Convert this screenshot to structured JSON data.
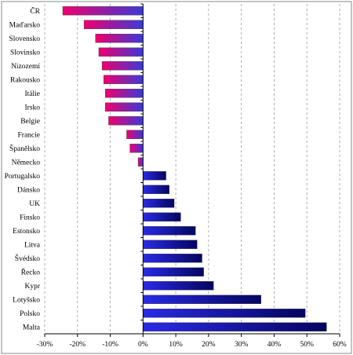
{
  "chart_data": {
    "type": "bar",
    "orientation": "horizontal",
    "title": "",
    "xlabel": "",
    "ylabel": "",
    "xlim": [
      -30,
      60
    ],
    "x_ticks": [
      -30,
      -20,
      -10,
      0,
      10,
      20,
      30,
      40,
      50,
      60
    ],
    "x_tick_labels": [
      "-30%",
      "-20%",
      "-10%",
      "0%",
      "10%",
      "20%",
      "30%",
      "40%",
      "50%",
      "60%"
    ],
    "unit": "%",
    "grid": "vertical dashed",
    "legend": "none",
    "categories": [
      "ČR",
      "Maďarsko",
      "Slovensko",
      "Slovinsko",
      "Nizozemí",
      "Rakousko",
      "Itálie",
      "Irsko",
      "Belgie",
      "Francie",
      "Španělsko",
      "Německo",
      "Portugalsko",
      "Dánsko",
      "UK",
      "Finsko",
      "Estonsko",
      "Litva",
      "Švédsko",
      "Řecko",
      "Kypr",
      "Lotyšsko",
      "Polsko",
      "Malta"
    ],
    "values": [
      -24.5,
      -18,
      -14.5,
      -13.5,
      -12.5,
      -12,
      -11.5,
      -11.5,
      -10.5,
      -5,
      -4,
      -1.5,
      7,
      8,
      9.5,
      11.5,
      16,
      16.5,
      18,
      18.5,
      21.5,
      36,
      49.5,
      56
    ],
    "colors": {
      "negative_start": "#f0006e",
      "negative_end": "#3a3ad8",
      "positive_start": "#2a2ae6",
      "positive_end": "#050560"
    }
  }
}
